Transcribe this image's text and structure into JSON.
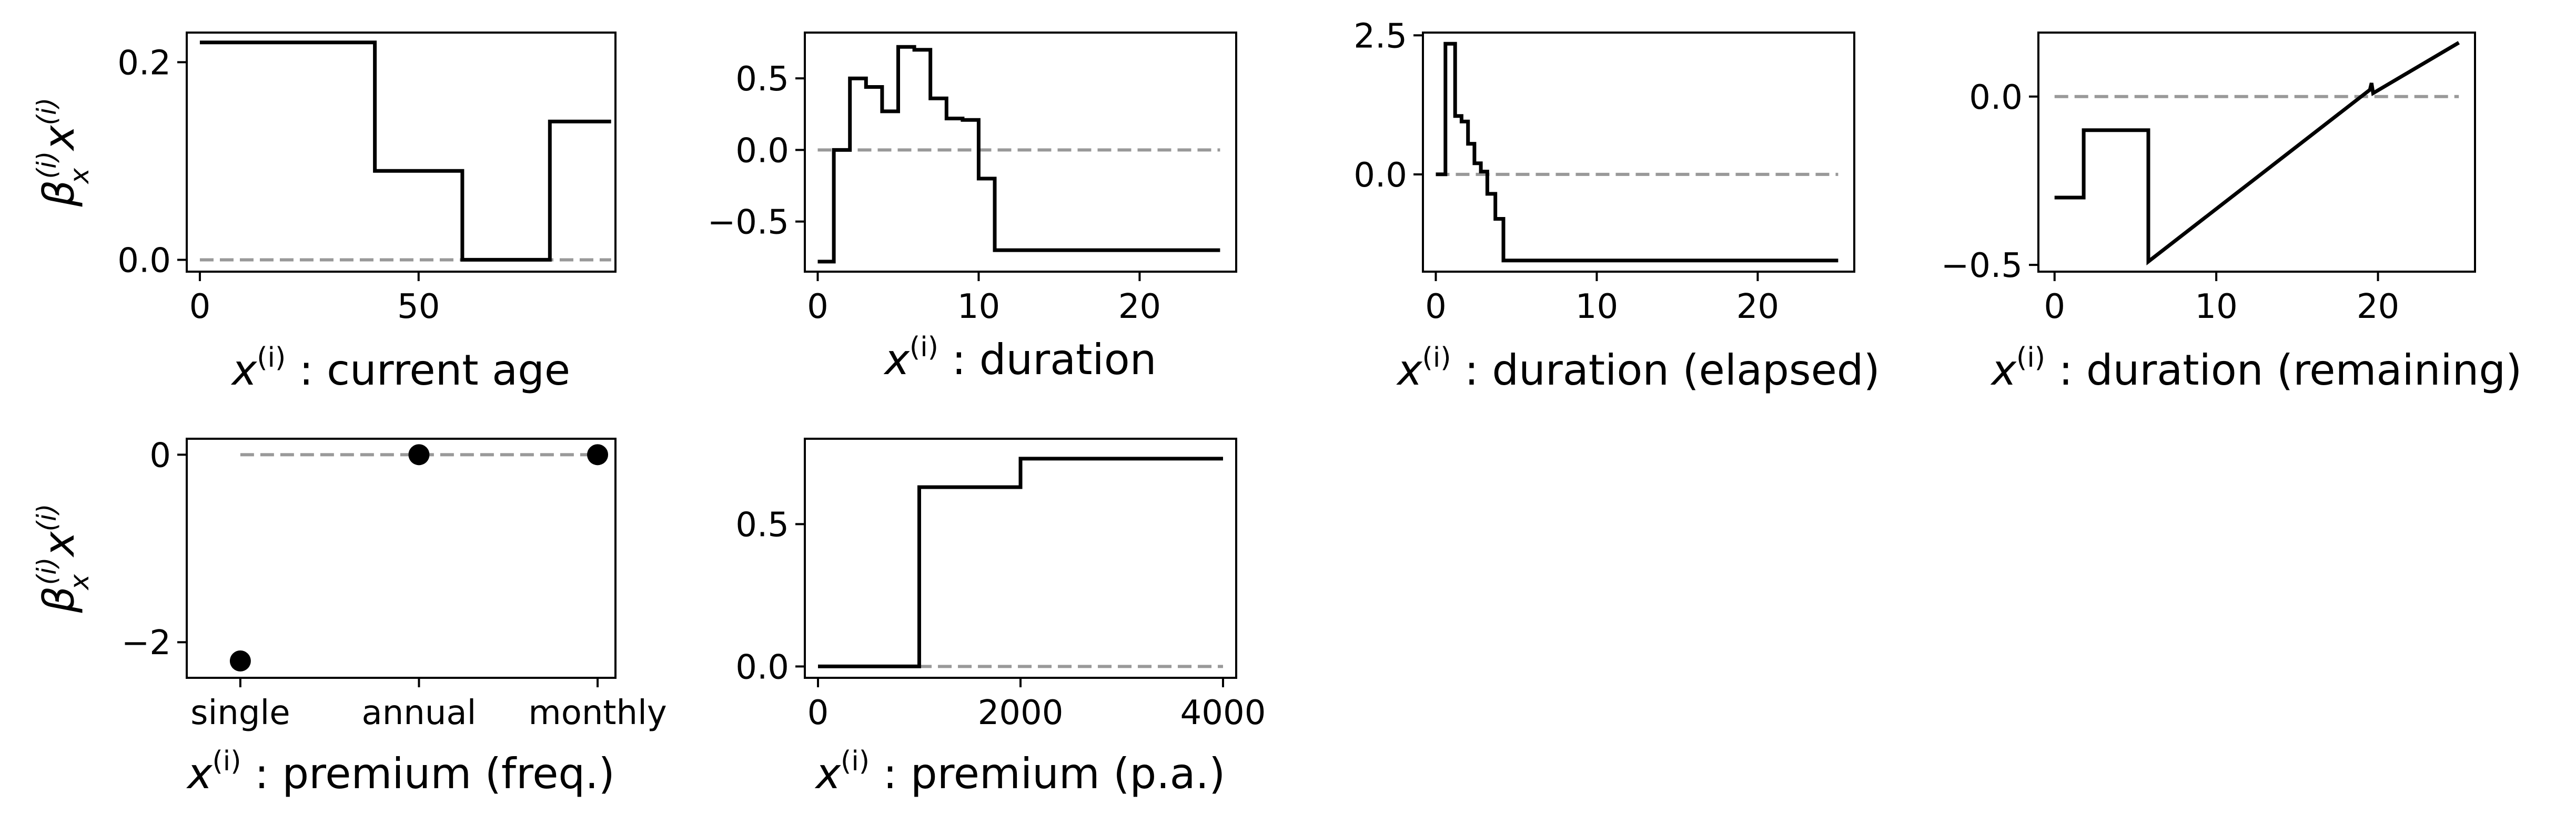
{
  "ylabel_text": "β_x^(i) x^(i)",
  "chart_data": [
    {
      "type": "line",
      "xlabel": "x^(i) : current age",
      "xlim": [
        -3,
        95
      ],
      "ylim": [
        -0.012,
        0.23
      ],
      "xticks": [
        0,
        50
      ],
      "xtick_labels": [
        "0",
        "50"
      ],
      "yticks": [
        0.0,
        0.2
      ],
      "ytick_labels": [
        "0.0",
        "0.2"
      ],
      "reference_line": {
        "y": 0,
        "x": [
          0,
          94
        ]
      },
      "series": [
        {
          "values": [
            [
              0,
              0.22
            ],
            [
              40,
              0.22
            ],
            [
              40,
              0.09
            ],
            [
              60,
              0.09
            ],
            [
              60,
              0.0
            ],
            [
              80,
              0.0
            ],
            [
              80,
              0.14
            ],
            [
              94,
              0.14
            ]
          ]
        }
      ],
      "show_ylabel": true
    },
    {
      "type": "line",
      "xlabel": "x^(i) : duration",
      "xlim": [
        -0.8,
        26
      ],
      "ylim": [
        -0.85,
        0.82
      ],
      "xticks": [
        0,
        10,
        20
      ],
      "xtick_labels": [
        "0",
        "10",
        "20"
      ],
      "yticks": [
        -0.5,
        0.0,
        0.5
      ],
      "ytick_labels": [
        "−0.5",
        "0.0",
        "0.5"
      ],
      "reference_line": {
        "y": 0,
        "x": [
          0,
          25
        ]
      },
      "series": [
        {
          "values": [
            [
              0,
              -0.78
            ],
            [
              1,
              -0.78
            ],
            [
              1,
              0
            ],
            [
              2,
              0
            ],
            [
              2,
              0.5
            ],
            [
              3,
              0.5
            ],
            [
              3,
              0.44
            ],
            [
              4,
              0.44
            ],
            [
              4,
              0.27
            ],
            [
              5,
              0.27
            ],
            [
              5,
              0.72
            ],
            [
              6,
              0.72
            ],
            [
              6,
              0.7
            ],
            [
              7,
              0.7
            ],
            [
              7,
              0.36
            ],
            [
              8,
              0.36
            ],
            [
              8,
              0.22
            ],
            [
              9,
              0.22
            ],
            [
              9,
              0.21
            ],
            [
              10,
              0.21
            ],
            [
              10,
              -0.2
            ],
            [
              11,
              -0.2
            ],
            [
              11,
              -0.7
            ],
            [
              25,
              -0.7
            ]
          ]
        }
      ],
      "show_ylabel": false
    },
    {
      "type": "line",
      "xlabel": "x^(i) : duration (elapsed)",
      "xlim": [
        -0.8,
        26
      ],
      "ylim": [
        -1.75,
        2.55
      ],
      "xticks": [
        0,
        10,
        20
      ],
      "xtick_labels": [
        "0",
        "10",
        "20"
      ],
      "yticks": [
        0.0,
        2.5
      ],
      "ytick_labels": [
        "0.0",
        "2.5"
      ],
      "reference_line": {
        "y": 0,
        "x": [
          0,
          25
        ]
      },
      "series": [
        {
          "values": [
            [
              0,
              0
            ],
            [
              0.6,
              0
            ],
            [
              0.6,
              2.35
            ],
            [
              1.2,
              2.35
            ],
            [
              1.2,
              1.05
            ],
            [
              1.6,
              1.05
            ],
            [
              1.6,
              0.95
            ],
            [
              2.0,
              0.95
            ],
            [
              2.0,
              0.55
            ],
            [
              2.4,
              0.55
            ],
            [
              2.4,
              0.2
            ],
            [
              2.8,
              0.2
            ],
            [
              2.8,
              0.05
            ],
            [
              3.2,
              0.05
            ],
            [
              3.2,
              -0.35
            ],
            [
              3.7,
              -0.35
            ],
            [
              3.7,
              -0.8
            ],
            [
              4.2,
              -0.8
            ],
            [
              4.2,
              -1.55
            ],
            [
              25,
              -1.55
            ]
          ]
        }
      ],
      "show_ylabel": false
    },
    {
      "type": "line",
      "xlabel": "x^(i) : duration (remaining)",
      "xlim": [
        -1,
        26
      ],
      "ylim": [
        -0.52,
        0.19
      ],
      "xticks": [
        0,
        10,
        20
      ],
      "xtick_labels": [
        "0",
        "10",
        "20"
      ],
      "yticks": [
        -0.5,
        0.0
      ],
      "ytick_labels": [
        "−0.5",
        "0.0"
      ],
      "reference_line": {
        "y": 0,
        "x": [
          0,
          25
        ]
      },
      "series": [
        {
          "values": [
            [
              0,
              -0.3
            ],
            [
              1,
              -0.3
            ],
            [
              1,
              -0.3
            ],
            [
              1.8,
              -0.3
            ],
            [
              1.8,
              -0.1
            ],
            [
              3,
              -0.1
            ],
            [
              3,
              -0.1
            ],
            [
              5.8,
              -0.1
            ],
            [
              5.8,
              -0.49
            ],
            [
              19.5,
              0.02
            ],
            [
              19.6,
              0.04
            ],
            [
              19.7,
              0.01
            ],
            [
              25,
              0.16
            ]
          ]
        }
      ],
      "show_ylabel": false
    },
    {
      "type": "scatter",
      "xlabel": "x^(i) : premium (freq.)",
      "categories": [
        "single",
        "annual",
        "monthly"
      ],
      "xlim": [
        -0.3,
        2.1
      ],
      "ylim": [
        -2.38,
        0.17
      ],
      "xticks": [
        0,
        1,
        2
      ],
      "xtick_labels": [
        "single",
        "annual",
        "monthly"
      ],
      "yticks": [
        -2,
        0
      ],
      "ytick_labels": [
        "−2",
        "0"
      ],
      "reference_line": {
        "y": 0,
        "x": [
          0,
          2
        ]
      },
      "series": [
        {
          "values": [
            -2.2,
            0.0,
            0.0
          ]
        }
      ],
      "show_ylabel": true
    },
    {
      "type": "line",
      "xlabel": "x^(i) : premium (p.a.)",
      "xlim": [
        -130,
        4130
      ],
      "ylim": [
        -0.04,
        0.8
      ],
      "xticks": [
        0,
        2000,
        4000
      ],
      "xtick_labels": [
        "0",
        "2000",
        "4000"
      ],
      "yticks": [
        0.0,
        0.5
      ],
      "ytick_labels": [
        "0.0",
        "0.5"
      ],
      "reference_line": {
        "y": 0,
        "x": [
          0,
          4000
        ]
      },
      "series": [
        {
          "values": [
            [
              0,
              0
            ],
            [
              1000,
              0
            ],
            [
              1000,
              0.63
            ],
            [
              2000,
              0.63
            ],
            [
              2000,
              0.73
            ],
            [
              4000,
              0.73
            ]
          ]
        }
      ],
      "show_ylabel": false
    }
  ]
}
